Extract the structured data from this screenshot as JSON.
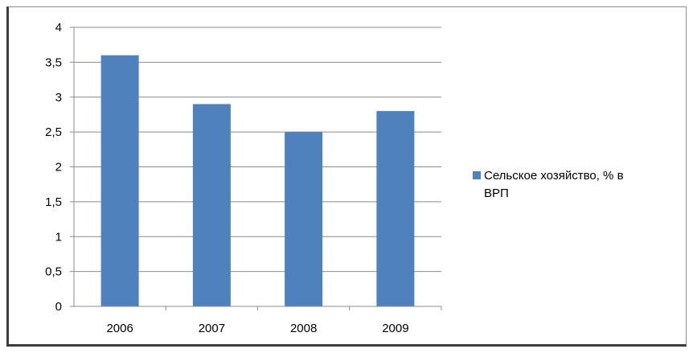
{
  "chart_data": {
    "type": "bar",
    "categories": [
      "2006",
      "2007",
      "2008",
      "2009"
    ],
    "series": [
      {
        "name": "Сельское хозяйство, % в ВРП",
        "values": [
          3.6,
          2.9,
          2.5,
          2.8
        ],
        "color": "#4F81BD"
      }
    ],
    "y_ticks": [
      "0",
      "0,5",
      "1",
      "1,5",
      "2",
      "2,5",
      "3",
      "3,5",
      "4"
    ],
    "ylim": [
      0,
      4
    ],
    "y_step": 0.5,
    "grid": true,
    "legend": {
      "position": "right",
      "line1": "Сельское хозяйство, % в",
      "line2": "ВРП"
    },
    "colors": {
      "bar": "#4F81BD",
      "grid": "#8c8c8c",
      "axis": "#8c8c8c"
    }
  }
}
